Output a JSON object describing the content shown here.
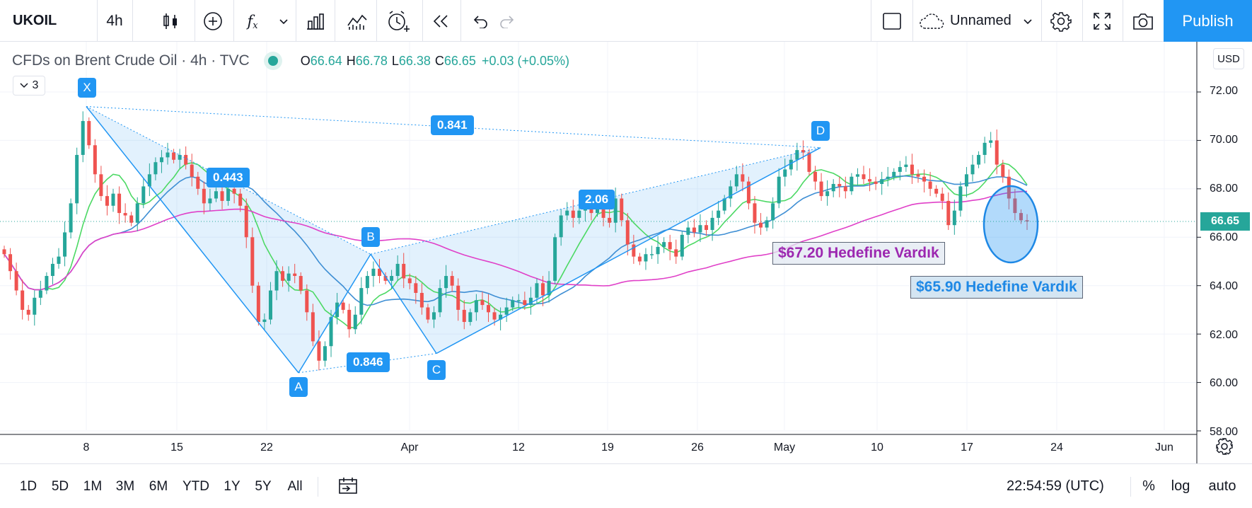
{
  "toolbar": {
    "symbol": "UKOIL",
    "interval": "4h",
    "fx_label": "f",
    "fx_sub": "x",
    "layout_name": "Unnamed",
    "publish_label": "Publish"
  },
  "legend": {
    "title": "CFDs on Brent Crude Oil · 4h · TVC",
    "open_label": "O",
    "open": "66.64",
    "high_label": "H",
    "high": "66.78",
    "low_label": "L",
    "low": "66.38",
    "close_label": "C",
    "close": "66.65",
    "change": "+0.03 (+0.05%)",
    "indicators_count": "3"
  },
  "price_axis": {
    "currency": "USD",
    "ticks": [
      "72.00",
      "70.00",
      "68.00",
      "66.00",
      "64.00",
      "62.00",
      "60.00",
      "58.00"
    ],
    "last_price": "66.65"
  },
  "time_axis": {
    "ticks": [
      "8",
      "15",
      "22",
      "Apr",
      "12",
      "19",
      "26",
      "May",
      "10",
      "17",
      "24",
      "Jun"
    ]
  },
  "pattern": {
    "points": {
      "X": "X",
      "A": "A",
      "B": "B",
      "C": "C",
      "D": "D"
    },
    "ratios": {
      "xb": "0.443",
      "ac": "0.846",
      "bd": "2.06",
      "xd": "0.841"
    }
  },
  "annotations": {
    "purple_note": "$67.20 Hedefine Vardık",
    "blue_note": "$65.90 Hedefine Vardık"
  },
  "bottombar": {
    "ranges": [
      "1D",
      "5D",
      "1M",
      "3M",
      "6M",
      "YTD",
      "1Y",
      "5Y",
      "All"
    ],
    "time": "22:54:59 (UTC)",
    "percent": "%",
    "log": "log",
    "auto": "auto"
  },
  "colors": {
    "accent": "#2196f3",
    "up": "#26a69a",
    "down": "#ef5350",
    "ma_fast": "#4cd964",
    "ma_mid": "#3f8fd4",
    "ma_slow": "#e040c8",
    "note_purple": "#9c27b0",
    "note_blue": "#1e88e5"
  },
  "chart_data": {
    "type": "candlestick",
    "symbol": "UKOIL",
    "interval": "4h",
    "y_range": [
      57.7,
      73.3
    ],
    "last": 66.65,
    "pattern_points": [
      {
        "label": "X",
        "date": "Mar 8",
        "price": 71.4
      },
      {
        "label": "A",
        "date": "Mar 23",
        "price": 60.4
      },
      {
        "label": "B",
        "date": "Mar 30",
        "price": 65.3
      },
      {
        "label": "C",
        "date": "Apr 2",
        "price": 61.2
      },
      {
        "label": "D",
        "date": "May 5",
        "price": 69.7
      }
    ],
    "closes": [
      65.3,
      64.6,
      63.8,
      63.0,
      62.8,
      63.5,
      63.8,
      64.4,
      64.9,
      65.2,
      66.2,
      67.4,
      69.4,
      70.8,
      69.8,
      68.6,
      67.7,
      67.3,
      67.8,
      67.0,
      66.9,
      66.6,
      67.4,
      68.1,
      68.6,
      69.1,
      69.3,
      69.5,
      69.2,
      69.4,
      69.0,
      68.5,
      68.0,
      67.4,
      67.6,
      67.9,
      67.5,
      68.0,
      67.8,
      67.3,
      66.0,
      64.0,
      62.5,
      62.6,
      63.8,
      64.6,
      64.2,
      64.5,
      64.4,
      63.8,
      62.9,
      61.7,
      60.9,
      61.5,
      62.7,
      63.3,
      63.0,
      62.2,
      62.8,
      63.9,
      64.4,
      64.7,
      64.4,
      64.2,
      64.4,
      64.9,
      64.3,
      64.1,
      63.7,
      63.1,
      62.6,
      62.9,
      63.9,
      64.4,
      64.0,
      63.0,
      62.5,
      62.9,
      63.4,
      63.2,
      62.9,
      62.6,
      62.8,
      63.1,
      63.4,
      63.4,
      63.2,
      63.5,
      64.1,
      63.6,
      64.2,
      66.0,
      66.9,
      67.1,
      66.8,
      67.1,
      67.5,
      67.0,
      67.2,
      66.8,
      66.6,
      67.6,
      66.7,
      65.7,
      65.2,
      65.0,
      65.3,
      65.3,
      65.6,
      65.8,
      65.5,
      65.2,
      66.1,
      66.4,
      66.2,
      66.5,
      66.3,
      66.8,
      67.1,
      67.6,
      68.1,
      68.6,
      68.3,
      67.4,
      66.6,
      66.4,
      66.7,
      67.4,
      68.5,
      68.8,
      69.2,
      69.6,
      69.5,
      68.7,
      68.3,
      67.7,
      67.9,
      68.2,
      68.1,
      67.9,
      68.5,
      68.6,
      68.4,
      68.3,
      68.2,
      68.4,
      68.5,
      68.7,
      68.9,
      69.0,
      68.6,
      68.5,
      68.3,
      68.0,
      67.8,
      67.5,
      66.5,
      67.1,
      68.1,
      68.6,
      69.0,
      69.4,
      69.9,
      70.0,
      69.0,
      68.5,
      67.6,
      67.0,
      66.7,
      66.65
    ]
  }
}
